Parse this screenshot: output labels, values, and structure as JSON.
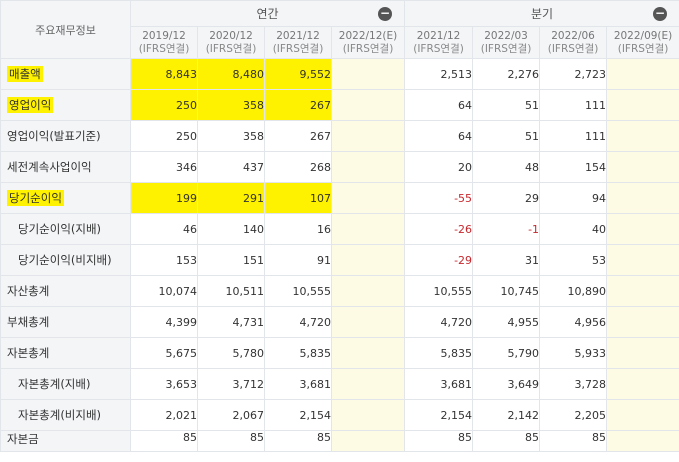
{
  "header": {
    "row_label": "주요재무정보",
    "annual_group": "연간",
    "quarter_group": "분기",
    "collapse_icon": "minus-circle-icon",
    "annual_periods": [
      {
        "period": "2019/12",
        "basis": "(IFRS연결)"
      },
      {
        "period": "2020/12",
        "basis": "(IFRS연결)"
      },
      {
        "period": "2021/12",
        "basis": "(IFRS연결)"
      },
      {
        "period": "2022/12(E)",
        "basis": "(IFRS연결)"
      }
    ],
    "quarter_periods": [
      {
        "period": "2021/12",
        "basis": "(IFRS연결)"
      },
      {
        "period": "2022/03",
        "basis": "(IFRS연결)"
      },
      {
        "period": "2022/06",
        "basis": "(IFRS연결)"
      },
      {
        "period": "2022/09(E)",
        "basis": "(IFRS연결)"
      }
    ]
  },
  "rows": [
    {
      "label": "매출액",
      "annual": [
        "8,843",
        "8,480",
        "9,552",
        ""
      ],
      "quarter": [
        "2,513",
        "2,276",
        "2,723",
        ""
      ]
    },
    {
      "label": "영업이익",
      "annual": [
        "250",
        "358",
        "267",
        ""
      ],
      "quarter": [
        "64",
        "51",
        "111",
        ""
      ]
    },
    {
      "label": "영업이익(발표기준)",
      "annual": [
        "250",
        "358",
        "267",
        ""
      ],
      "quarter": [
        "64",
        "51",
        "111",
        ""
      ]
    },
    {
      "label": "세전계속사업이익",
      "annual": [
        "346",
        "437",
        "268",
        ""
      ],
      "quarter": [
        "20",
        "48",
        "154",
        ""
      ]
    },
    {
      "label": "당기순이익",
      "annual": [
        "199",
        "291",
        "107",
        ""
      ],
      "quarter": [
        "-55",
        "29",
        "94",
        ""
      ]
    },
    {
      "label": "당기순이익(지배)",
      "annual": [
        "46",
        "140",
        "16",
        ""
      ],
      "quarter": [
        "-26",
        "-1",
        "40",
        ""
      ]
    },
    {
      "label": "당기순이익(비지배)",
      "annual": [
        "153",
        "151",
        "91",
        ""
      ],
      "quarter": [
        "-29",
        "31",
        "53",
        ""
      ]
    },
    {
      "label": "자산총계",
      "annual": [
        "10,074",
        "10,511",
        "10,555",
        ""
      ],
      "quarter": [
        "10,555",
        "10,745",
        "10,890",
        ""
      ]
    },
    {
      "label": "부채총계",
      "annual": [
        "4,399",
        "4,731",
        "4,720",
        ""
      ],
      "quarter": [
        "4,720",
        "4,955",
        "4,956",
        ""
      ]
    },
    {
      "label": "자본총계",
      "annual": [
        "5,675",
        "5,780",
        "5,835",
        ""
      ],
      "quarter": [
        "5,835",
        "5,790",
        "5,933",
        ""
      ]
    },
    {
      "label": "자본총계(지배)",
      "annual": [
        "3,653",
        "3,712",
        "3,681",
        ""
      ],
      "quarter": [
        "3,681",
        "3,649",
        "3,728",
        ""
      ]
    },
    {
      "label": "자본총계(비지배)",
      "annual": [
        "2,021",
        "2,067",
        "2,154",
        ""
      ],
      "quarter": [
        "2,154",
        "2,142",
        "2,205",
        ""
      ]
    },
    {
      "label": "자본금",
      "annual": [
        "85",
        "85",
        "85",
        ""
      ],
      "quarter": [
        "85",
        "85",
        "85",
        ""
      ]
    }
  ],
  "highlight_color": "#fff200",
  "negative_color": "#c8282d",
  "estimate_column_color": "#fdfbe4"
}
